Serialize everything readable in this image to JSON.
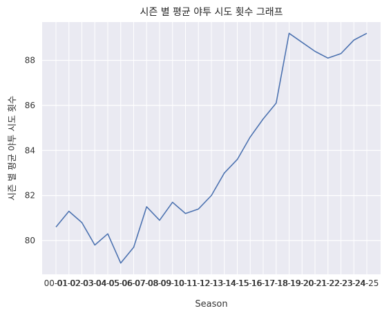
{
  "chart_data": {
    "type": "line",
    "title": "시즌 별 평균 야투 시도 횟수 그래프",
    "xlabel": "Season",
    "ylabel": "시즌 별 평균 야투 시도 횟수",
    "categories": [
      "00-01",
      "01-02",
      "02-03",
      "03-04",
      "04-05",
      "05-06",
      "06-07",
      "07-08",
      "08-09",
      "09-10",
      "10-11",
      "11-12",
      "12-13",
      "13-14",
      "14-15",
      "15-16",
      "16-17",
      "17-18",
      "18-19",
      "19-20",
      "20-21",
      "21-22",
      "22-23",
      "23-24",
      "24-25"
    ],
    "series": [
      {
        "values": [
          80.6,
          81.3,
          80.8,
          79.8,
          80.3,
          79.0,
          79.7,
          81.5,
          80.9,
          81.7,
          81.2,
          81.4,
          82.0,
          83.0,
          83.6,
          84.6,
          85.4,
          86.1,
          89.2,
          88.8,
          88.4,
          88.1,
          88.3,
          88.9,
          89.2
        ],
        "color": "#4c72b0"
      }
    ],
    "yticks": [
      80,
      82,
      84,
      86,
      88
    ],
    "ylim": [
      78.5,
      89.7
    ],
    "grid": true,
    "background": "#eaeaf2",
    "gridColor": "#ffffff"
  }
}
